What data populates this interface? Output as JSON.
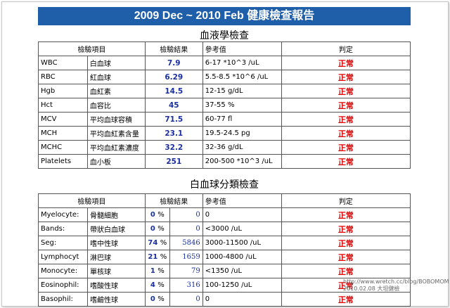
{
  "title": "2009 Dec ~ 2010 Feb 健康檢查報告",
  "blood": {
    "section_title": "血液學檢查",
    "headers": [
      "檢驗項目",
      "檢驗結果",
      "參考值",
      "判定"
    ],
    "rows": [
      {
        "code": "WBC",
        "name": "白血球",
        "value": "7.9",
        "ref": "6-17 *10^3 /uL",
        "status": "正常"
      },
      {
        "code": "RBC",
        "name": "紅血球",
        "value": "6.29",
        "ref": "5.5-8.5 *10^6 /uL",
        "status": "正常"
      },
      {
        "code": "Hgb",
        "name": "血紅素",
        "value": "14.5",
        "ref": "12-15 g/dL",
        "status": "正常"
      },
      {
        "code": "Hct",
        "name": "血容比",
        "value": "45",
        "ref": "37-55 %",
        "status": "正常"
      },
      {
        "code": "MCV",
        "name": "平均血球容積",
        "value": "71.5",
        "ref": "60-77 fl",
        "status": "正常"
      },
      {
        "code": "MCH",
        "name": "平均血紅素含量",
        "value": "23.1",
        "ref": "19.5-24.5 pg",
        "status": "正常"
      },
      {
        "code": "MCHC",
        "name": "平均血紅素濃度",
        "value": "32.2",
        "ref": "32-36 g/dL",
        "status": "正常"
      },
      {
        "code": "Platelets",
        "name": "血小板",
        "value": "251",
        "ref": "200-500 *10^3 /uL",
        "status": "正常"
      }
    ]
  },
  "wbc_diff": {
    "section_title": "白血球分類檢查",
    "headers": [
      "檢驗項目",
      "檢驗結果",
      "參考值",
      "判定"
    ],
    "rows": [
      {
        "code": "Myelocyte:",
        "name": "骨髓細胞",
        "pct": "0",
        "pct_unit": "%",
        "count": "0",
        "ref": "0",
        "status": "正常"
      },
      {
        "code": "Bands:",
        "name": "帶狀白血球",
        "pct": "0",
        "pct_unit": "%",
        "count": "0",
        "ref": "<3000 /uL",
        "status": "正常"
      },
      {
        "code": "Seg:",
        "name": "嗜中性球",
        "pct": "74",
        "pct_unit": "%",
        "count": "5846",
        "ref": "3000-11500 /uL",
        "status": "正常"
      },
      {
        "code": "Lymphocyt",
        "name": "淋巴球",
        "pct": "21",
        "pct_unit": "%",
        "count": "1659",
        "ref": "1000-4800 /uL",
        "status": "正常"
      },
      {
        "code": "Monocyte:",
        "name": "單核球",
        "pct": "1",
        "pct_unit": "%",
        "count": "79",
        "ref": "<1350 /uL",
        "status": "正常"
      },
      {
        "code": "Eosinophil:",
        "name": "嗜酸性球",
        "pct": "4",
        "pct_unit": "%",
        "count": "316",
        "ref": "100-1250 /uL",
        "status": "正常"
      },
      {
        "code": "Basophil:",
        "name": "嗜鹼性球",
        "pct": "0",
        "pct_unit": "%",
        "count": "0",
        "ref": "0",
        "status": "正常"
      }
    ]
  },
  "watermark": {
    "url": "http://www.wretch.cc/blog/BOBOMOM",
    "caption": "2010.02.08 大坦健檢"
  }
}
